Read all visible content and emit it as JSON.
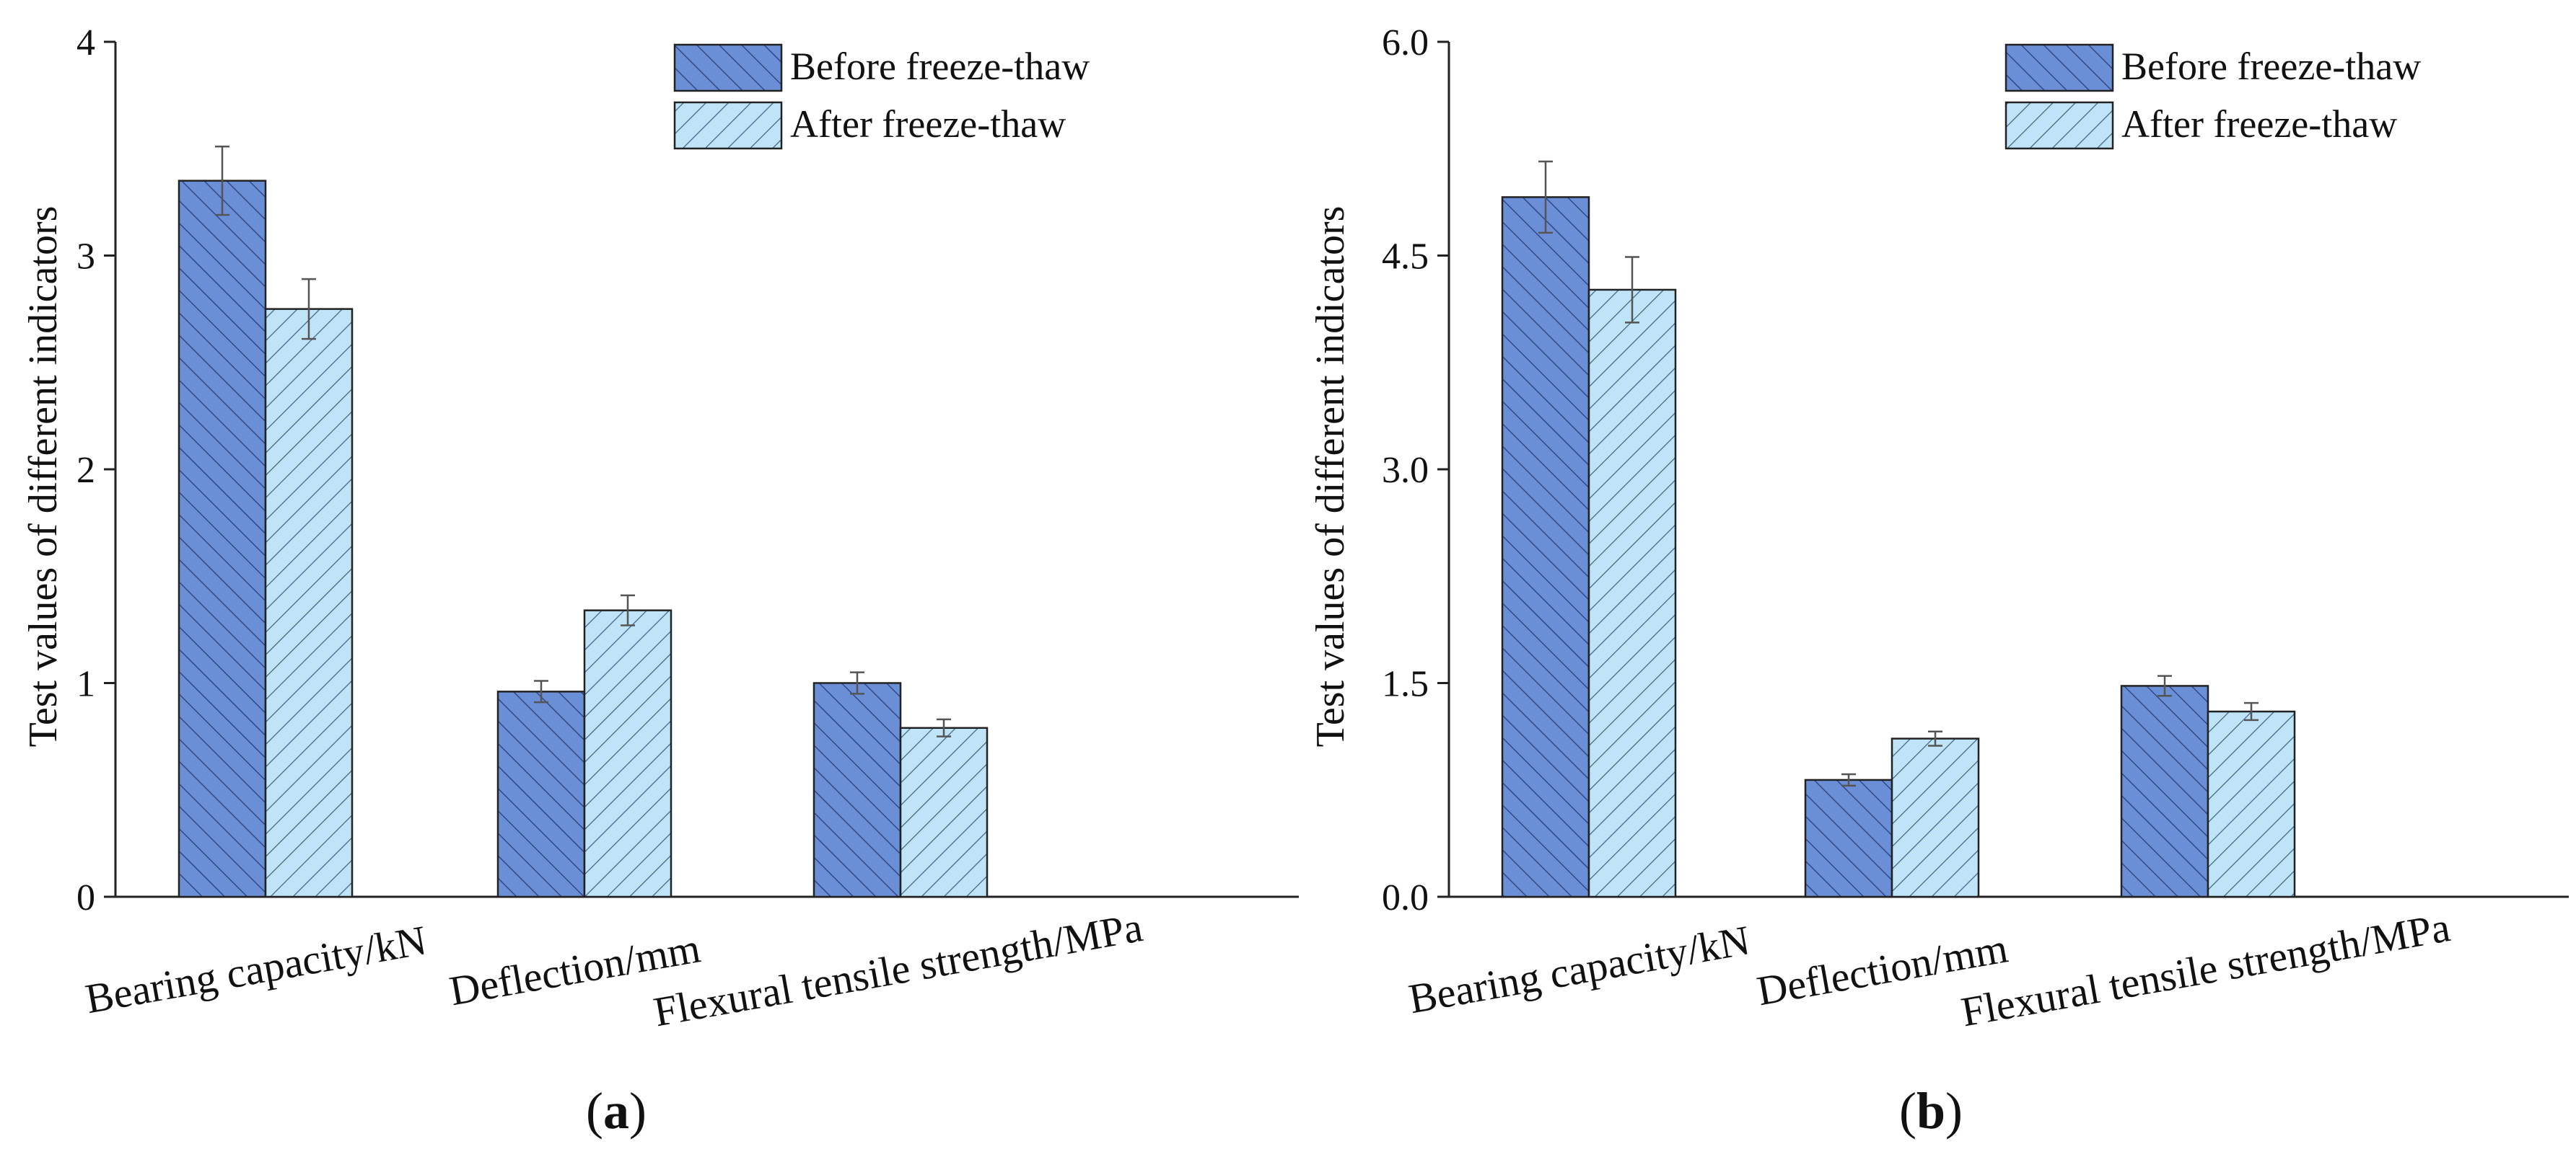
{
  "chart_data": [
    {
      "type": "bar",
      "panel_label": "a",
      "ylabel": "Test values of different indicators",
      "xlabel": "",
      "ylim": [
        0,
        4
      ],
      "yticks": [
        "0",
        "1",
        "2",
        "3",
        "4"
      ],
      "ytick_values": [
        0,
        1,
        2,
        3,
        4
      ],
      "categories": [
        "Bearing capacity/kN",
        "Deflection/mm",
        "Flexural tensile strength/MPa"
      ],
      "series": [
        {
          "name": "Before freeze-thaw",
          "values": [
            3.35,
            0.96,
            1.0
          ],
          "errors": [
            0.16,
            0.05,
            0.05
          ]
        },
        {
          "name": "After freeze-thaw",
          "values": [
            2.75,
            1.34,
            0.79
          ],
          "errors": [
            0.14,
            0.07,
            0.04
          ]
        }
      ],
      "legend_position": "top-right"
    },
    {
      "type": "bar",
      "panel_label": "b",
      "ylabel": "Test values of different indicators",
      "xlabel": "",
      "ylim": [
        0,
        6
      ],
      "yticks": [
        "0.0",
        "1.5",
        "3.0",
        "4.5",
        "6.0"
      ],
      "ytick_values": [
        0,
        1.5,
        3.0,
        4.5,
        6.0
      ],
      "categories": [
        "Bearing capacity/kN",
        "Deflection/mm",
        "Flexural tensile strength/MPa"
      ],
      "series": [
        {
          "name": "Before freeze-thaw",
          "values": [
            4.91,
            0.82,
            1.48
          ],
          "errors": [
            0.25,
            0.04,
            0.07
          ]
        },
        {
          "name": "After freeze-thaw",
          "values": [
            4.26,
            1.11,
            1.3
          ],
          "errors": [
            0.23,
            0.05,
            0.06
          ]
        }
      ],
      "legend_position": "top-right"
    }
  ],
  "colors": {
    "before_fill": "#6b8fd6",
    "after_fill": "#bfe4f7",
    "outline": "#222222",
    "errorbar": "#555555"
  }
}
